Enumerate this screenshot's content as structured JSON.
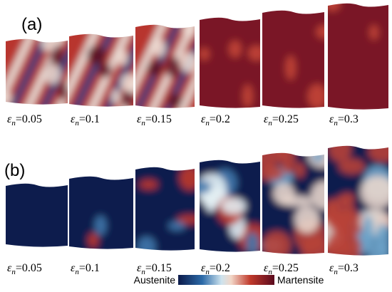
{
  "rows": [
    {
      "label": "(a)",
      "strain_symbol": "ε",
      "strain_subscript": "n",
      "strains": [
        "=0.05",
        "=0.1",
        "=0.15",
        "=0.2",
        "=0.25",
        "=0.3"
      ]
    },
    {
      "label": "(b)",
      "strain_symbol": "ε",
      "strain_subscript": "n",
      "strains": [
        "=0.05",
        "=0.1",
        "=0.15",
        "=0.2",
        "=0.25",
        "=0.3"
      ]
    }
  ],
  "colorbar": {
    "left_label": "Austenite",
    "right_label": "Martensite"
  }
}
